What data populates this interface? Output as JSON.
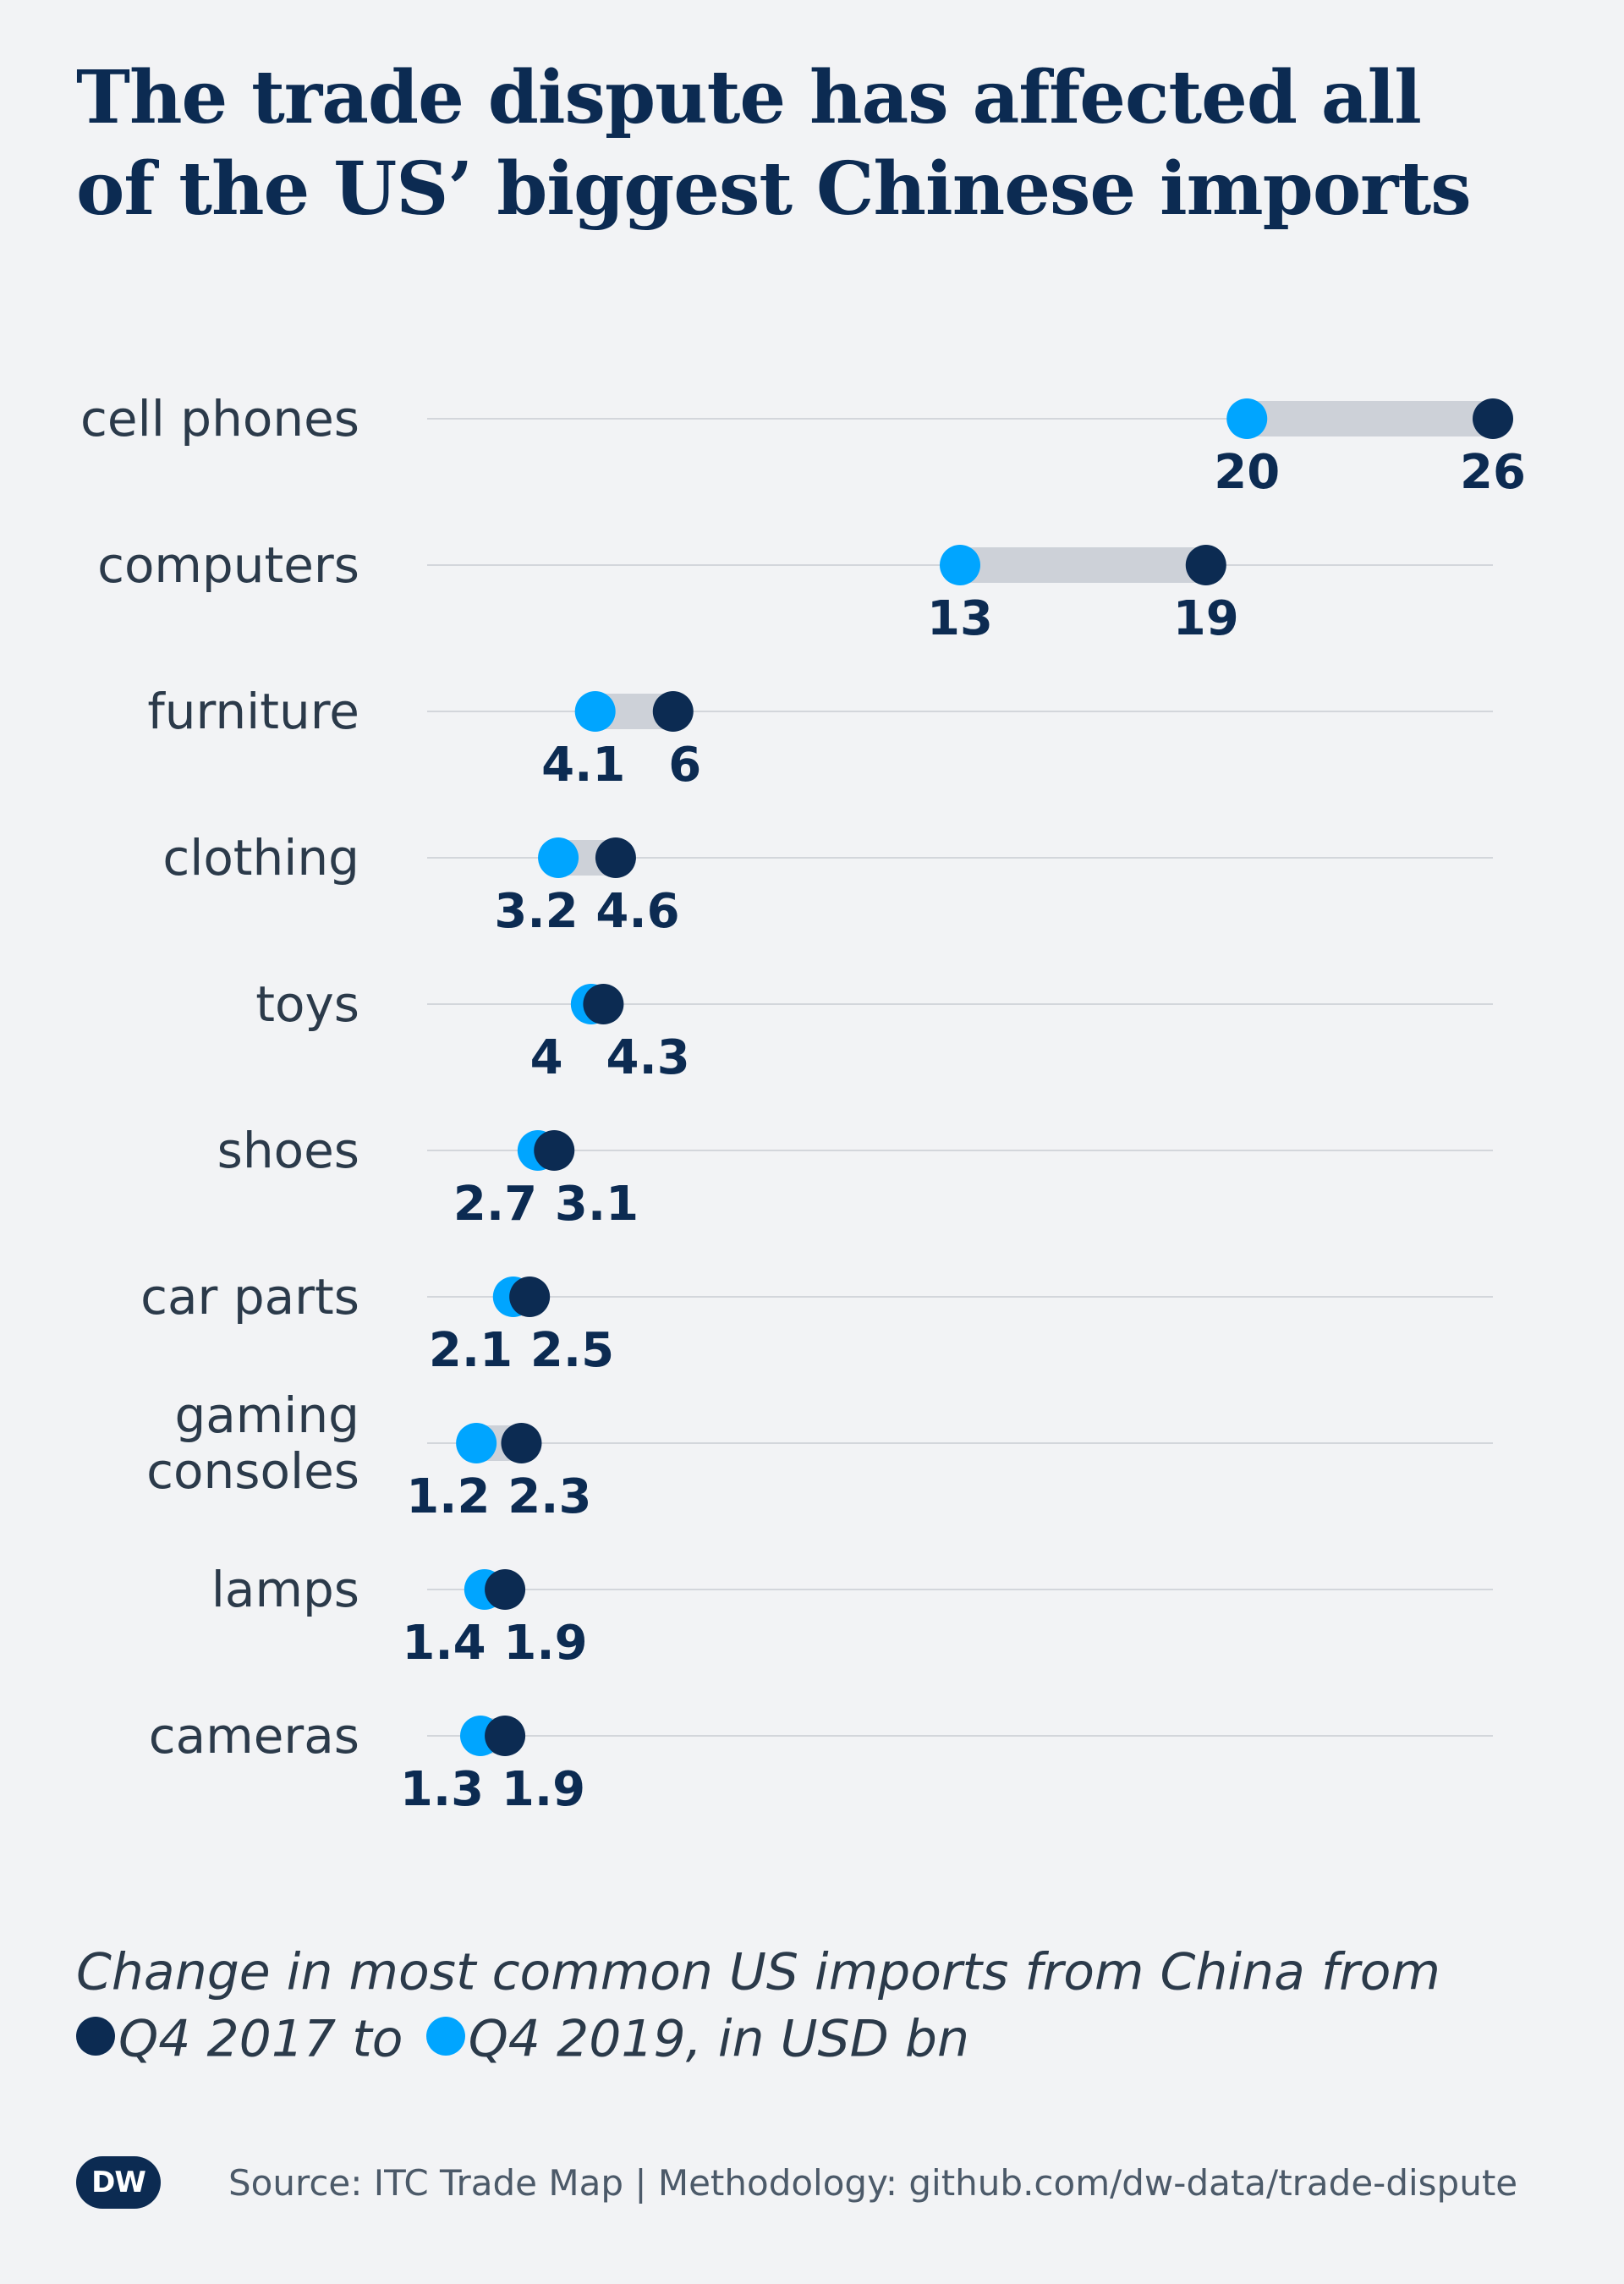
{
  "title": {
    "line1": "The trade dispute has affected all",
    "line2": "of the US’ biggest Chinese imports"
  },
  "caption": {
    "line1": "Change in most common US imports from China from",
    "from_label": "Q4 2017 to",
    "to_label": "Q4 2019, in USD bn"
  },
  "footer": {
    "logo_text": "DW",
    "source": "Source: ITC Trade Map | Methodology: github.com/dw-data/trade-dispute"
  },
  "colors": {
    "background": "#f2f3f5",
    "q4_2017": "#0c2b52",
    "q4_2019": "#00a5ff",
    "range_bar": "#cdd1d8",
    "gridline": "#d3d6db",
    "text": "#2b3a4a"
  },
  "chart_data": {
    "type": "dumbbell",
    "title": "The trade dispute has affected all of the US’ biggest Chinese imports",
    "unit": "USD bn",
    "xlim": [
      0,
      26
    ],
    "grid": true,
    "series": [
      {
        "name": "Q4 2017",
        "color": "#0c2b52"
      },
      {
        "name": "Q4 2019",
        "color": "#00a5ff"
      }
    ],
    "categories": [
      {
        "label": [
          "cell phones"
        ],
        "q4_2017": 26,
        "q4_2019": 20,
        "q4_2017_label": "26",
        "q4_2019_label": "20"
      },
      {
        "label": [
          "computers"
        ],
        "q4_2017": 19,
        "q4_2019": 13,
        "q4_2017_label": "19",
        "q4_2019_label": "13"
      },
      {
        "label": [
          "furniture"
        ],
        "q4_2017": 6,
        "q4_2019": 4.1,
        "q4_2017_label": "6",
        "q4_2019_label": "4.1"
      },
      {
        "label": [
          "clothing"
        ],
        "q4_2017": 4.6,
        "q4_2019": 3.2,
        "q4_2017_label": "4.6",
        "q4_2019_label": "3.2"
      },
      {
        "label": [
          "toys"
        ],
        "q4_2017": 4.3,
        "q4_2019": 4,
        "q4_2017_label": "4.3",
        "q4_2019_label": "4"
      },
      {
        "label": [
          "shoes"
        ],
        "q4_2017": 3.1,
        "q4_2019": 2.7,
        "q4_2017_label": "3.1",
        "q4_2019_label": "2.7"
      },
      {
        "label": [
          "car parts"
        ],
        "q4_2017": 2.5,
        "q4_2019": 2.1,
        "q4_2017_label": "2.5",
        "q4_2019_label": "2.1"
      },
      {
        "label": [
          "gaming",
          "consoles"
        ],
        "q4_2017": 2.3,
        "q4_2019": 1.2,
        "q4_2017_label": "2.3",
        "q4_2019_label": "1.2"
      },
      {
        "label": [
          "lamps"
        ],
        "q4_2017": 1.9,
        "q4_2019": 1.4,
        "q4_2017_label": "1.9",
        "q4_2019_label": "1.4"
      },
      {
        "label": [
          "cameras"
        ],
        "q4_2017": 1.9,
        "q4_2019": 1.3,
        "q4_2017_label": "1.9",
        "q4_2019_label": "1.3"
      }
    ]
  }
}
